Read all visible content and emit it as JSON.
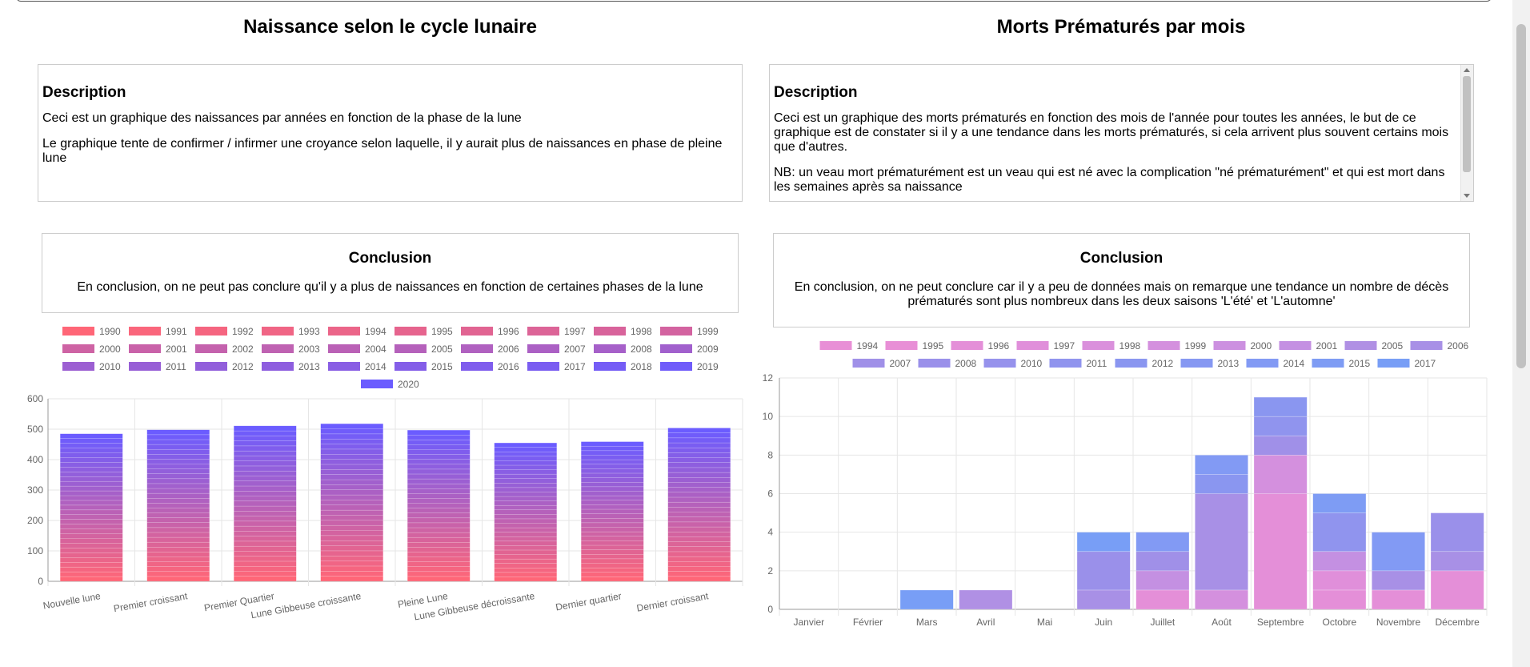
{
  "left": {
    "title": "Naissance selon le cycle lunaire",
    "description": {
      "heading": "Description",
      "paragraphs": [
        "Ceci est un graphique des naissances par années en fonction de la phase de la lune",
        "Le graphique tente de confirmer / infirmer une croyance selon laquelle, il y aurait plus de naissances en phase de pleine lune"
      ]
    },
    "conclusion": {
      "heading": "Conclusion",
      "text": "En conclusion, on ne peut pas conclure qu'il y a plus de naissances en fonction de certaines phases de la lune"
    }
  },
  "right": {
    "title": "Morts Prématurés par mois",
    "description": {
      "heading": "Description",
      "paragraphs": [
        "Ceci est un graphique des morts prématurés en fonction des mois de l'année pour toutes les années, le but de ce graphique est de constater si il y a une tendance dans les morts prématurés, si cela arrivent plus souvent certains mois que d'autres.",
        "NB: un veau mort prématurément est un veau qui est né avec la complication \"né prématurément\" et qui est mort dans les semaines après sa naissance"
      ]
    },
    "conclusion": {
      "heading": "Conclusion",
      "text": "En conclusion, on ne peut conclure car il y a peu de données mais on remarque une tendance un nombre de décès prématurés sont plus nombreux dans les deux saisons 'L'été' et 'L'automne'"
    }
  },
  "chart_data": [
    {
      "type": "bar",
      "stacked": true,
      "categories": [
        "Nouvelle lune",
        "Premier croissant",
        "Premier Quartier",
        "Lune Gibbeuse croissante",
        "Pleine Lune",
        "Lune Gibbeuse décroissante",
        "Dernier quartier",
        "Dernier croissant"
      ],
      "totals": [
        485,
        498,
        511,
        518,
        497,
        455,
        459,
        504
      ],
      "series_names": [
        "1990",
        "1991",
        "1992",
        "1993",
        "1994",
        "1995",
        "1996",
        "1997",
        "1998",
        "1999",
        "2000",
        "2001",
        "2002",
        "2003",
        "2004",
        "2005",
        "2006",
        "2007",
        "2008",
        "2009",
        "2010",
        "2011",
        "2012",
        "2013",
        "2014",
        "2015",
        "2016",
        "2017",
        "2018",
        "2019",
        "2020"
      ],
      "color_start": "#ff6677",
      "color_end": "#6b5cff",
      "ylim": [
        0,
        600
      ],
      "yticks": [
        0,
        100,
        200,
        300,
        400,
        500,
        600
      ],
      "legend_position": "top",
      "grid": true
    },
    {
      "type": "bar",
      "stacked": true,
      "categories": [
        "Janvier",
        "Février",
        "Mars",
        "Avril",
        "Mai",
        "Juin",
        "Juillet",
        "Août",
        "Septembre",
        "Octobre",
        "Novembre",
        "Décembre"
      ],
      "series": [
        {
          "name": "1994",
          "color": "#e88fd6",
          "values": [
            0,
            0,
            0,
            0,
            0,
            0,
            0,
            0,
            0,
            0,
            0,
            0
          ]
        },
        {
          "name": "1995",
          "color": "#e88fd6",
          "values": [
            0,
            0,
            0,
            0,
            0,
            0,
            0,
            0,
            0,
            0,
            0,
            0
          ]
        },
        {
          "name": "1996",
          "color": "#e48fd8",
          "values": [
            0,
            0,
            0,
            0,
            0,
            0,
            1,
            0,
            6,
            1,
            1,
            2
          ]
        },
        {
          "name": "1997",
          "color": "#e08fda",
          "values": [
            0,
            0,
            0,
            0,
            0,
            0,
            0,
            0,
            0,
            1,
            0,
            0
          ]
        },
        {
          "name": "1998",
          "color": "#da90dc",
          "values": [
            0,
            0,
            0,
            0,
            0,
            0,
            0,
            0,
            0,
            0,
            0,
            0
          ]
        },
        {
          "name": "1999",
          "color": "#d490de",
          "values": [
            0,
            0,
            0,
            0,
            0,
            0,
            0,
            1,
            2,
            0,
            0,
            0
          ]
        },
        {
          "name": "2000",
          "color": "#cc90e0",
          "values": [
            0,
            0,
            0,
            0,
            0,
            0,
            0,
            0,
            0,
            0,
            0,
            0
          ]
        },
        {
          "name": "2001",
          "color": "#c490e2",
          "values": [
            0,
            0,
            0,
            0,
            0,
            0,
            1,
            0,
            0,
            1,
            0,
            0
          ]
        },
        {
          "name": "2005",
          "color": "#b090e4",
          "values": [
            0,
            0,
            0,
            1,
            0,
            0,
            0,
            0,
            0,
            0,
            0,
            0
          ]
        },
        {
          "name": "2006",
          "color": "#a890e6",
          "values": [
            0,
            0,
            0,
            0,
            0,
            1,
            0,
            5,
            0,
            0,
            1,
            1
          ]
        },
        {
          "name": "2007",
          "color": "#a090e8",
          "values": [
            0,
            0,
            0,
            0,
            0,
            0,
            1,
            0,
            1,
            0,
            0,
            0
          ]
        },
        {
          "name": "2008",
          "color": "#9a90ea",
          "values": [
            0,
            0,
            0,
            0,
            0,
            2,
            0,
            0,
            0,
            0,
            0,
            2
          ]
        },
        {
          "name": "2010",
          "color": "#9692ec",
          "values": [
            0,
            0,
            0,
            0,
            0,
            0,
            0,
            0,
            0,
            0,
            0,
            0
          ]
        },
        {
          "name": "2011",
          "color": "#9094ee",
          "values": [
            0,
            0,
            0,
            0,
            0,
            0,
            0,
            0,
            1,
            2,
            0,
            0
          ]
        },
        {
          "name": "2012",
          "color": "#8a96f0",
          "values": [
            0,
            0,
            0,
            0,
            0,
            0,
            0,
            1,
            1,
            0,
            0,
            0
          ]
        },
        {
          "name": "2013",
          "color": "#8698f2",
          "values": [
            0,
            0,
            0,
            0,
            0,
            0,
            0,
            0,
            0,
            0,
            0,
            0
          ]
        },
        {
          "name": "2014",
          "color": "#829af4",
          "values": [
            0,
            0,
            0,
            0,
            0,
            0,
            1,
            1,
            0,
            0,
            2,
            0
          ]
        },
        {
          "name": "2015",
          "color": "#7e9cf4",
          "values": [
            0,
            0,
            0,
            0,
            0,
            0,
            0,
            0,
            0,
            1,
            0,
            0
          ]
        },
        {
          "name": "2017",
          "color": "#789ef6",
          "values": [
            0,
            0,
            1,
            0,
            0,
            1,
            0,
            0,
            0,
            0,
            0,
            0
          ]
        }
      ],
      "ylim": [
        0,
        12
      ],
      "yticks": [
        0,
        2,
        4,
        6,
        8,
        10,
        12
      ],
      "legend_position": "top",
      "grid": true
    }
  ]
}
